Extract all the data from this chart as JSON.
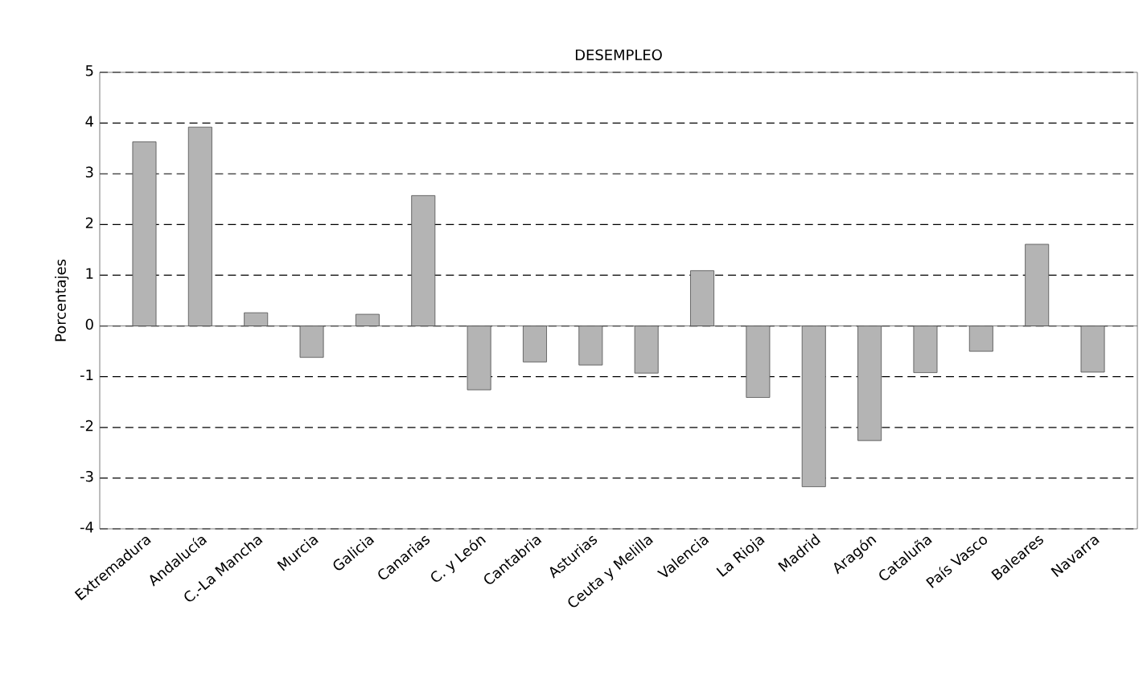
{
  "chart_data": {
    "type": "bar",
    "title": "DESEMPLEO",
    "ylabel": "Porcentajes",
    "categories": [
      "Extremadura",
      "Andalucía",
      "C.-La Mancha",
      "Murcia",
      "Galicia",
      "Canarias",
      "C. y León",
      "Cantabria",
      "Asturias",
      "Ceuta y Melilla",
      "Valencia",
      "La Rioja",
      "Madrid",
      "Aragón",
      "Cataluña",
      "País Vasco",
      "Baleares",
      "Navarra"
    ],
    "values": [
      3.63,
      3.92,
      0.26,
      -0.62,
      0.23,
      2.57,
      -1.26,
      -0.71,
      -0.77,
      -0.93,
      1.09,
      -1.41,
      -3.17,
      -2.26,
      -0.92,
      -0.5,
      1.61,
      -0.91
    ],
    "color": "#b4b4b4",
    "ylim": [
      -4,
      5
    ],
    "yticks": [
      -4,
      -3,
      -2,
      -1,
      0,
      1,
      2,
      3,
      4,
      5
    ],
    "grid": "y"
  }
}
